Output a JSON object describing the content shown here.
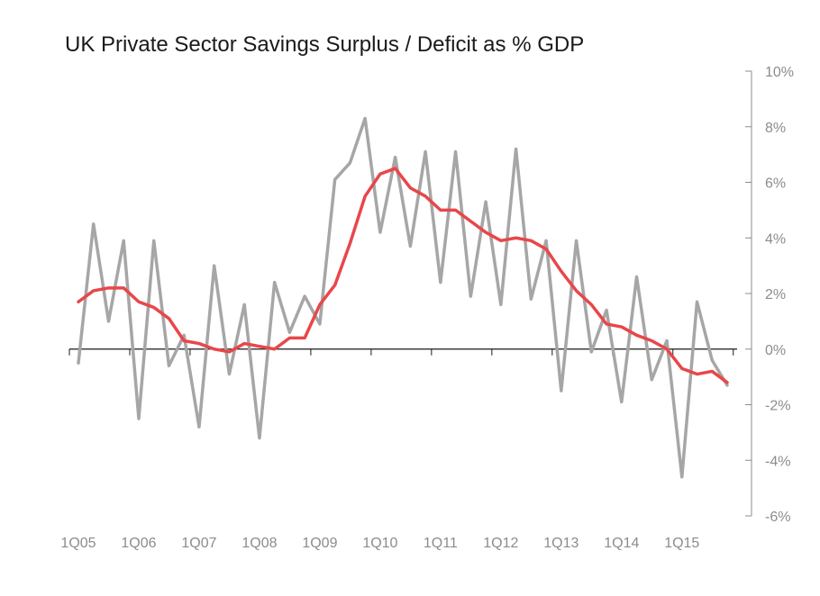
{
  "chart_data": {
    "type": "line",
    "title": "UK Private Sector Savings Surplus / Deficit as % GDP",
    "ylim": [
      -6,
      10
    ],
    "y_ticks": [
      10,
      8,
      6,
      4,
      2,
      0,
      -2,
      -4,
      -6
    ],
    "y_tick_labels": [
      "10%",
      "8%",
      "6%",
      "4%",
      "2%",
      "0%",
      "-2%",
      "-4%",
      "-6%"
    ],
    "x_tick_labels": [
      "1Q05",
      "1Q06",
      "1Q07",
      "1Q08",
      "1Q09",
      "1Q10",
      "1Q11",
      "1Q12",
      "1Q13",
      "1Q14",
      "1Q15"
    ],
    "x": [
      "1Q05",
      "2Q05",
      "3Q05",
      "4Q05",
      "1Q06",
      "2Q06",
      "3Q06",
      "4Q06",
      "1Q07",
      "2Q07",
      "3Q07",
      "4Q07",
      "1Q08",
      "2Q08",
      "3Q08",
      "4Q08",
      "1Q09",
      "2Q09",
      "3Q09",
      "4Q09",
      "1Q10",
      "2Q10",
      "3Q10",
      "4Q10",
      "1Q11",
      "2Q11",
      "3Q11",
      "4Q11",
      "1Q12",
      "2Q12",
      "3Q12",
      "4Q12",
      "1Q13",
      "2Q13",
      "3Q13",
      "4Q13",
      "1Q14",
      "2Q14",
      "3Q14",
      "4Q14",
      "1Q15",
      "2Q15",
      "3Q15",
      "4Q15"
    ],
    "series": [
      {
        "color": "#a6a6a6",
        "values": [
          -0.5,
          4.5,
          1.0,
          3.9,
          -2.5,
          3.9,
          -0.6,
          0.5,
          -2.8,
          3.0,
          -0.9,
          1.6,
          -3.2,
          2.4,
          0.6,
          1.9,
          0.9,
          6.1,
          6.7,
          8.3,
          4.2,
          6.9,
          3.7,
          7.1,
          2.4,
          7.1,
          1.9,
          5.3,
          1.6,
          7.2,
          1.8,
          3.9,
          -1.5,
          3.9,
          -0.1,
          1.4,
          -1.9,
          2.6,
          -1.1,
          0.3,
          -4.6,
          1.7,
          -0.4,
          -1.3
        ]
      },
      {
        "color": "#e8474a",
        "values": [
          1.7,
          2.1,
          2.2,
          2.2,
          1.7,
          1.5,
          1.1,
          0.3,
          0.2,
          0.0,
          -0.1,
          0.2,
          0.1,
          0.0,
          0.4,
          0.4,
          1.6,
          2.3,
          3.8,
          5.5,
          6.3,
          6.5,
          5.8,
          5.5,
          5.0,
          5.0,
          4.6,
          4.2,
          3.9,
          4.0,
          3.9,
          3.6,
          2.8,
          2.1,
          1.6,
          0.9,
          0.8,
          0.5,
          0.3,
          0.0,
          -0.7,
          -0.9,
          -0.8,
          -1.2
        ]
      }
    ]
  }
}
